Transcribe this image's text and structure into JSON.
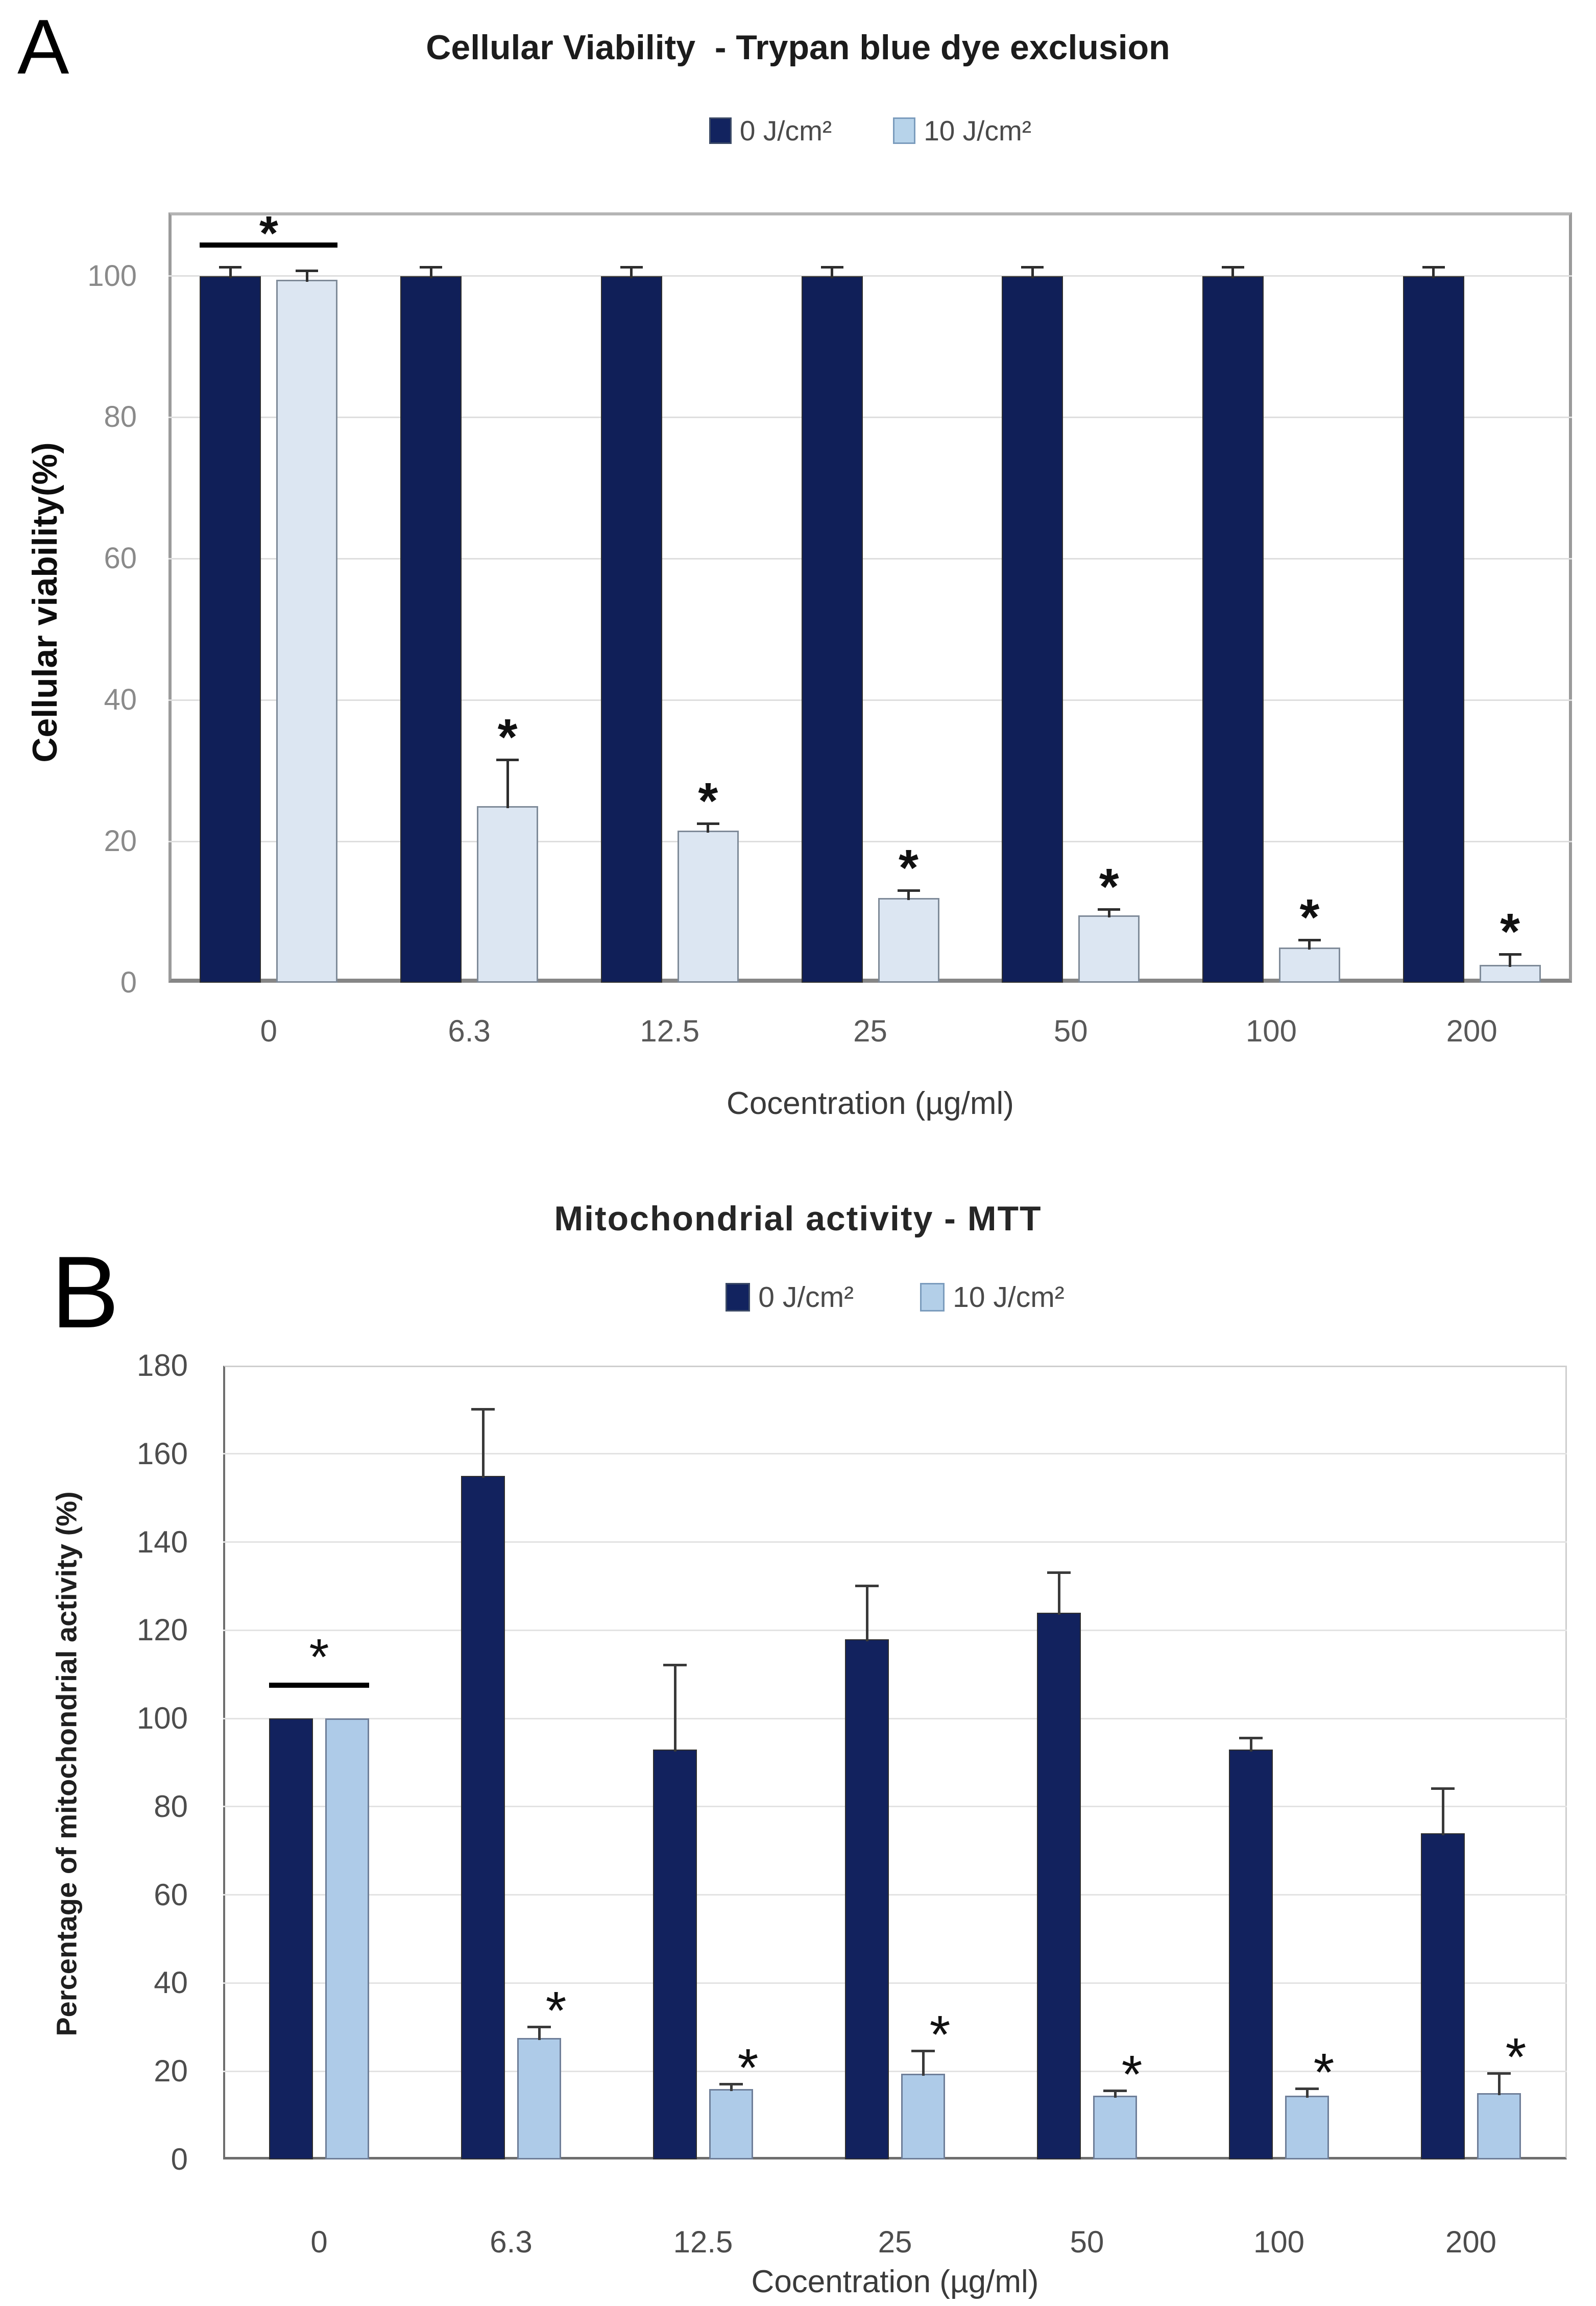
{
  "panels": [
    {
      "panel_label": "A",
      "title": "Cellular Viability  - Trypan blue dye exclusion",
      "legend_swatches": [
        "#12235f",
        "#b7d3ea"
      ],
      "chart_data": {
        "type": "bar",
        "title": "Cellular Viability  - Trypan blue dye exclusion",
        "categories": [
          "0",
          "6.3",
          "12.5",
          "25",
          "50",
          "100",
          "200"
        ],
        "series": [
          {
            "name": "0 J/cm²",
            "color": "#101f58",
            "border": "#2f2f2f",
            "values": [
              100,
              100,
              100,
              100,
              100,
              100,
              100
            ],
            "errors": [
              1.2,
              1.2,
              1.2,
              1.2,
              1.2,
              1.2,
              1.2
            ]
          },
          {
            "name": "10 J/cm²",
            "color": "#dce6f2",
            "border": "#7f8b99",
            "values": [
              99.5,
              25,
              21.5,
              12,
              9.5,
              5,
              2.5
            ],
            "errors": [
              1.2,
              6.5,
              1,
              1,
              0.8,
              1,
              1.5
            ]
          }
        ],
        "ylabel": "Cellular viability(%)",
        "xlabel": "Cocentration (µg/ml)",
        "yticks": [
          0,
          20,
          40,
          60,
          80,
          100
        ],
        "ylim": [
          0,
          109
        ],
        "grid": true,
        "legend_position": "top",
        "significance": {
          "marker": "*",
          "bracket_group": 0,
          "starred_series": 1,
          "starred_groups": [
            1,
            2,
            3,
            4,
            5,
            6
          ]
        }
      }
    },
    {
      "panel_label": "B",
      "title": "Mitochondrial activity - MTT",
      "legend_swatches": [
        "#12235f",
        "#b3cfe8"
      ],
      "chart_data": {
        "type": "bar",
        "title": "Mitochondrial activity - MTT",
        "categories": [
          "0",
          "6.3",
          "12.5",
          "25",
          "50",
          "100",
          "200"
        ],
        "series": [
          {
            "name": "0 J/cm²",
            "color": "#12225e",
            "border": "#2f2f2f",
            "values": [
              100,
              155,
              93,
              118,
              124,
              93,
              74
            ],
            "errors": [
              0,
              15,
              19,
              12,
              9,
              2.5,
              10
            ]
          },
          {
            "name": "10 J/cm²",
            "color": "#aecbe8",
            "border": "#6f7f99",
            "values": [
              100,
              27.5,
              16,
              19.5,
              14.5,
              14.5,
              15
            ],
            "errors": [
              0,
              2.5,
              1,
              5,
              1,
              1.5,
              4.5
            ]
          }
        ],
        "ylabel": "Percentage of mitochondrial activity (%)",
        "xlabel": "Cocentration (µg/ml)",
        "yticks": [
          0,
          20,
          40,
          60,
          80,
          100,
          120,
          140,
          160,
          180
        ],
        "ylim": [
          0,
          180
        ],
        "grid": true,
        "legend_position": "top",
        "significance": {
          "marker": "*",
          "bracket_group": 0,
          "starred_series": 1,
          "starred_groups": [
            1,
            2,
            3,
            4,
            5,
            6
          ]
        }
      }
    }
  ]
}
